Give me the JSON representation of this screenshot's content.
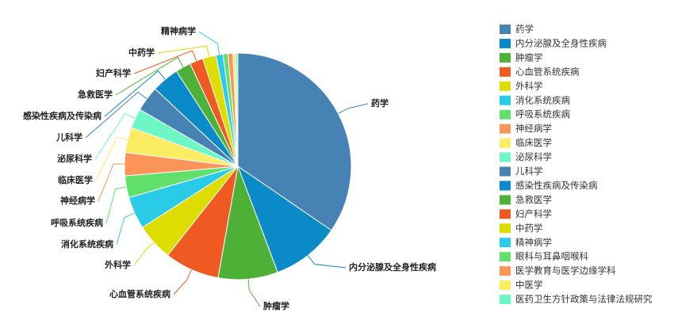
{
  "chart_data": {
    "type": "pie",
    "categories": [
      "药学",
      "内分泌腺及全身性疾病",
      "肿瘤学",
      "心血管系统疾病",
      "外科学",
      "消化系统疾病",
      "呼吸系统疾病",
      "神经病学",
      "临床医学",
      "泌尿科学",
      "儿科学",
      "感染性疾病及传染病",
      "急救医学",
      "妇产科学",
      "中药学",
      "精神病学",
      "眼科与耳鼻咽喉科",
      "医学教育与医学边缘学科",
      "中医学",
      "医药卫生方针政策与法律法规研究"
    ],
    "values": [
      34.5,
      9.7,
      8.5,
      7.8,
      5.3,
      4.6,
      3.1,
      3.3,
      3.6,
      2.8,
      3.6,
      3.9,
      2.2,
      1.9,
      1.9,
      1.0,
      0.7,
      0.7,
      0.4,
      0.3
    ],
    "colors": [
      "#4682b4",
      "#0a8ac6",
      "#4cb136",
      "#ef5a22",
      "#dddd00",
      "#2acbe6",
      "#62e06c",
      "#fa9459",
      "#fbec62",
      "#6ef7c6",
      "#4682b4",
      "#0a8ac6",
      "#4cb136",
      "#ef5a22",
      "#dddd00",
      "#2acbe6",
      "#62e06c",
      "#fa9459",
      "#fbec62",
      "#6ef7c6"
    ],
    "legend": "right"
  }
}
